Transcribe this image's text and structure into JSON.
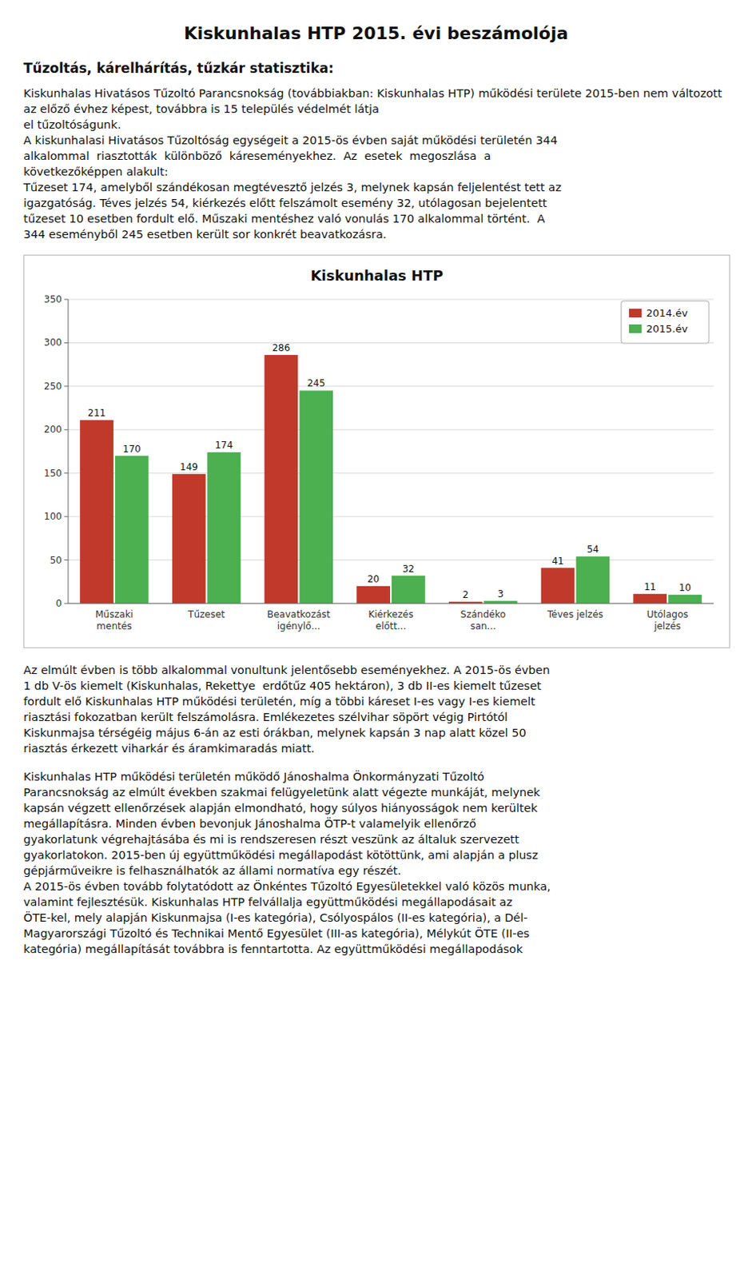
{
  "title": "Kiskunhalas HTP 2015. évi beszámolója",
  "subtitle": "Tűzoltás, kárelhárítás, tűzkár statisztika:",
  "paragraph_1": [
    "Kiskunhalas Hivatásos Tűzoltó Parancsnokság (továbbiakban: Kiskunhalas HTP) működési területe 2015-ben nem változott az előző évhez képest, továbbra is 15 település védelmét látja",
    "el tűzoltóságunk.",
    "A kiskunhalasi Hivatásos Tűzoltóság egységeit a 2015-ös évben saját működési területén 344",
    "alkalommal  riasztották  különböző  káreseményekhez.  Az  esetek  megoszlása  a",
    "következőképpen alakult:",
    "Tűzeset 174, amelyből szándékosan megtévesztő jelzés 3, melynek kapsán feljelentést tett az",
    "igazgatóság. Téves jelzés 54, kiérkezés előtt felszámolt esemény 32, utólagosan bejelentett",
    "tűzeset 10 esetben fordult elő. Műszaki mentéshez való vonulás 170 alkalommal történt.  A",
    "344 eseményből 245 esetben került sor konkrét beavatkozásra."
  ],
  "chart_data": {
    "type": "bar",
    "title": "Kiskunhalas HTP",
    "categories": [
      "Műszaki\nmentés",
      "Tűzeset",
      "Beavatkozást\nigénylő...",
      "Kiérkezés\nelőtt...",
      "Szándéko\nsan...",
      "Téves jelzés",
      "Utólagos\njelzés"
    ],
    "series": [
      {
        "name": "2014.év",
        "color": "#c0392b",
        "values": [
          211,
          149,
          286,
          20,
          2,
          41,
          11
        ]
      },
      {
        "name": "2015.év",
        "color": "#4caf50",
        "values": [
          170,
          174,
          245,
          32,
          3,
          54,
          10
        ]
      }
    ],
    "ylim": [
      0,
      350
    ],
    "yticks": [
      0,
      50,
      100,
      150,
      200,
      250,
      300,
      350
    ],
    "grid": true,
    "legend": "upper right",
    "data_labels": true
  },
  "paragraph_2": [
    "Az elmúlt évben is több alkalommal vonultunk jelentősebb eseményekhez. A 2015-ös évben",
    "1 db V-ös kiemelt (Kiskunhalas, Rekettye  erdőtűz 405 hektáron), 3 db II-es kiemelt tűzeset",
    "fordult elő Kiskunhalas HTP működési területén, míg a többi káreset I-es vagy I-es kiemelt",
    "riasztási fokozatban került felszámolásra. Emlékezetes szélvihar söpört végig Pirtótól",
    "Kiskunmajsa térségéig május 6-án az esti órákban, melynek kapsán 3 nap alatt közel 50",
    "riasztás érkezett viharkár és áramkimaradás miatt."
  ],
  "paragraph_3": [
    "Kiskunhalas HTP működési területén működő Jánoshalma Önkormányzati Tűzoltó",
    "Parancsnokság az elmúlt években szakmai felügyeletünk alatt végezte munkáját, melynek",
    "kapsán végzett ellenőrzések alapján elmondható, hogy súlyos hiányosságok nem kerültek",
    "megállapításra. Minden évben bevonjuk Jánoshalma ÖTP-t valamelyik ellenőrző",
    "gyakorlatunk végrehajtásába és mi is rendszeresen részt veszünk az általuk szervezett",
    "gyakorlatokon. 2015-ben új együttműködési megállapodást kötöttünk, ami alapján a plusz",
    "gépjárműveikre is felhasználhatók az állami normatíva egy részét.",
    "A 2015-ös évben tovább folytatódott az Önkéntes Tűzoltó Egyesületekkel való közös munka,",
    "valamint fejlesztésük. Kiskunhalas HTP felvállalja együttműködési megállapodásait az",
    "ÖTE-kel, mely alapján Kiskunmajsa (I-es kategória), Csólyospálos (II-es kategória), a Dél-",
    "Magyarországi Tűzoltó és Technikai Mentő Egyesület (III-as kategória), Mélykút ÖTE (II-es",
    "kategória) megállapítását továbbra is fenntartotta. Az együttműködési megállapodások"
  ]
}
